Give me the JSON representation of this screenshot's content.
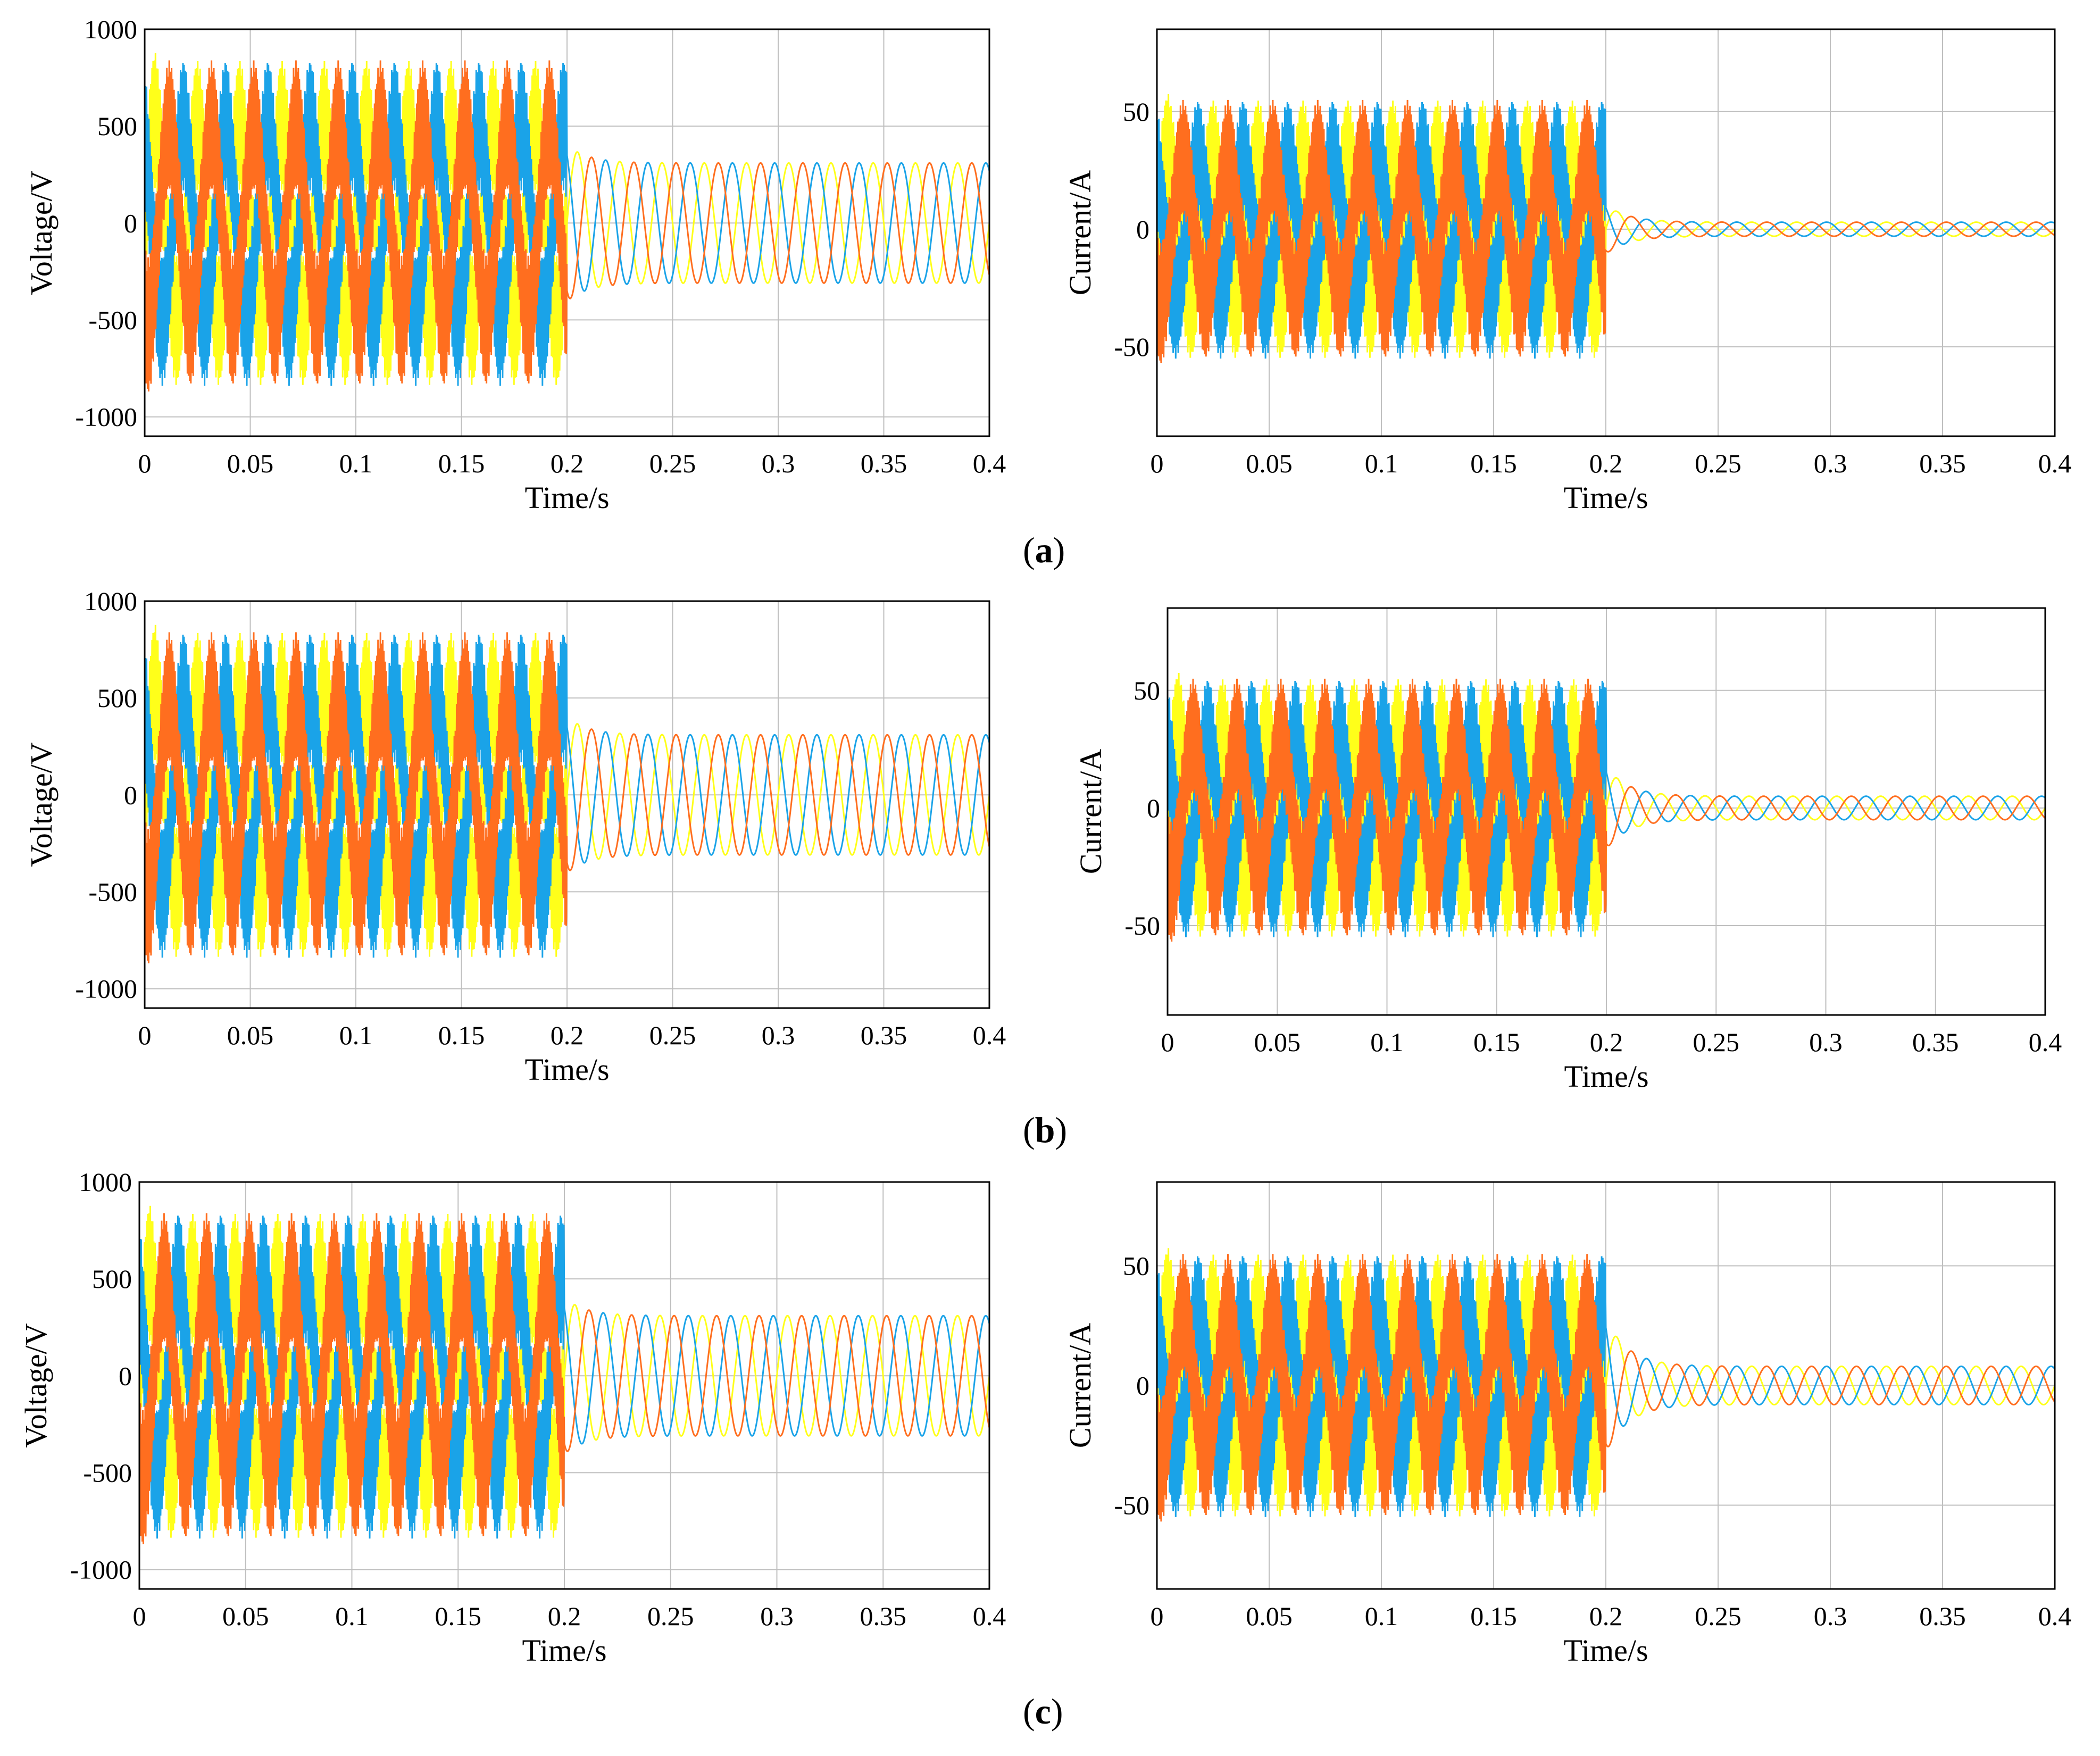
{
  "figure": {
    "panel_labels": [
      {
        "open": "(",
        "letter": "a",
        "close": ")"
      },
      {
        "open": "(",
        "letter": "b",
        "close": ")"
      },
      {
        "open": "(",
        "letter": "c",
        "close": ")"
      }
    ]
  },
  "colors": {
    "phase_a": "#ffff1a",
    "phase_b": "#ff6e1f",
    "phase_c": "#1aa3e8",
    "grid": "#bfbfbf",
    "axis": "#000000"
  },
  "chart_data": [
    {
      "id": "a-voltage",
      "panel": "a",
      "type": "line",
      "xlabel": "Time/s",
      "ylabel": "Voltage/V",
      "xlim": [
        0,
        0.4
      ],
      "ylim": [
        -1100,
        1000
      ],
      "xticks": [
        0,
        0.05,
        0.1,
        0.15,
        0.2,
        0.25,
        0.3,
        0.35,
        0.4
      ],
      "xtick_labels": [
        "0",
        "0.05",
        "0.1",
        "0.15",
        "0.2",
        "0.25",
        "0.3",
        "0.35",
        "0.4"
      ],
      "yticks": [
        -1000,
        -500,
        0,
        500,
        1000
      ],
      "ytick_labels": [
        "-1000",
        "-500",
        "0",
        "500",
        "1000"
      ],
      "grid": true,
      "switch_time": 0.2,
      "frequency_hz": 50,
      "series": [
        {
          "phase": "A",
          "color_key": "phase_a",
          "before_amplitude": 840,
          "after_amplitude": 310,
          "phase_deg": 0
        },
        {
          "phase": "B",
          "color_key": "phase_b",
          "before_amplitude": 840,
          "after_amplitude": 310,
          "phase_deg": -120
        },
        {
          "phase": "C",
          "color_key": "phase_c",
          "before_amplitude": 840,
          "after_amplitude": 310,
          "phase_deg": 120
        }
      ]
    },
    {
      "id": "a-current",
      "panel": "a",
      "type": "line",
      "xlabel": "Time/s",
      "ylabel": "Current/A",
      "xlim": [
        0,
        0.4
      ],
      "ylim": [
        -88,
        85
      ],
      "xticks": [
        0,
        0.05,
        0.1,
        0.15,
        0.2,
        0.25,
        0.3,
        0.35,
        0.4
      ],
      "xtick_labels": [
        "0",
        "0.05",
        "0.1",
        "0.15",
        "0.2",
        "0.25",
        "0.3",
        "0.35",
        "0.4"
      ],
      "yticks": [
        -50,
        0,
        50
      ],
      "ytick_labels": [
        "-50",
        "0",
        "50"
      ],
      "grid": true,
      "switch_time": 0.2,
      "frequency_hz": 50,
      "series": [
        {
          "phase": "A",
          "color_key": "phase_a",
          "before_amplitude": 55,
          "after_amplitude": 3,
          "phase_deg": 0
        },
        {
          "phase": "B",
          "color_key": "phase_b",
          "before_amplitude": 55,
          "after_amplitude": 3,
          "phase_deg": -120
        },
        {
          "phase": "C",
          "color_key": "phase_c",
          "before_amplitude": 55,
          "after_amplitude": 3,
          "phase_deg": 120
        }
      ]
    },
    {
      "id": "b-voltage",
      "panel": "b",
      "type": "line",
      "xlabel": "Time/s",
      "ylabel": "Voltage/V",
      "xlim": [
        0,
        0.4
      ],
      "ylim": [
        -1100,
        1000
      ],
      "xticks": [
        0,
        0.05,
        0.1,
        0.15,
        0.2,
        0.25,
        0.3,
        0.35,
        0.4
      ],
      "xtick_labels": [
        "0",
        "0.05",
        "0.1",
        "0.15",
        "0.2",
        "0.25",
        "0.3",
        "0.35",
        "0.4"
      ],
      "yticks": [
        -1000,
        -500,
        0,
        500,
        1000
      ],
      "ytick_labels": [
        "-1000",
        "-500",
        "0",
        "500",
        "1000"
      ],
      "grid": true,
      "switch_time": 0.2,
      "frequency_hz": 50,
      "series": [
        {
          "phase": "A",
          "color_key": "phase_a",
          "before_amplitude": 840,
          "after_amplitude": 310,
          "phase_deg": 0
        },
        {
          "phase": "B",
          "color_key": "phase_b",
          "before_amplitude": 840,
          "after_amplitude": 310,
          "phase_deg": -120
        },
        {
          "phase": "C",
          "color_key": "phase_c",
          "before_amplitude": 840,
          "after_amplitude": 310,
          "phase_deg": 120
        }
      ]
    },
    {
      "id": "b-current",
      "panel": "b",
      "type": "line",
      "xlabel": "Time/s",
      "ylabel": "Current/A",
      "xlim": [
        0,
        0.4
      ],
      "ylim": [
        -88,
        85
      ],
      "xticks": [
        0,
        0.05,
        0.1,
        0.15,
        0.2,
        0.25,
        0.3,
        0.35,
        0.4
      ],
      "xtick_labels": [
        "0",
        "0.05",
        "0.1",
        "0.15",
        "0.2",
        "0.25",
        "0.3",
        "0.35",
        "0.4"
      ],
      "yticks": [
        -50,
        0,
        50
      ],
      "ytick_labels": [
        "-50",
        "0",
        "50"
      ],
      "grid": true,
      "switch_time": 0.2,
      "frequency_hz": 50,
      "series": [
        {
          "phase": "A",
          "color_key": "phase_a",
          "before_amplitude": 55,
          "after_amplitude": 5,
          "phase_deg": 0
        },
        {
          "phase": "B",
          "color_key": "phase_b",
          "before_amplitude": 55,
          "after_amplitude": 5,
          "phase_deg": -120
        },
        {
          "phase": "C",
          "color_key": "phase_c",
          "before_amplitude": 55,
          "after_amplitude": 5,
          "phase_deg": 120
        }
      ]
    },
    {
      "id": "c-voltage",
      "panel": "c",
      "type": "line",
      "xlabel": "Time/s",
      "ylabel": "Voltage/V",
      "xlim": [
        0,
        0.4
      ],
      "ylim": [
        -1100,
        1000
      ],
      "xticks": [
        0,
        0.05,
        0.1,
        0.15,
        0.2,
        0.25,
        0.3,
        0.35,
        0.4
      ],
      "xtick_labels": [
        "0",
        "0.05",
        "0.1",
        "0.15",
        "0.2",
        "0.25",
        "0.3",
        "0.35",
        "0.4"
      ],
      "yticks": [
        -1000,
        -500,
        0,
        500,
        1000
      ],
      "ytick_labels": [
        "-1000",
        "-500",
        "0",
        "500",
        "1000"
      ],
      "grid": true,
      "switch_time": 0.2,
      "frequency_hz": 50,
      "series": [
        {
          "phase": "A",
          "color_key": "phase_a",
          "before_amplitude": 840,
          "after_amplitude": 310,
          "phase_deg": 0
        },
        {
          "phase": "B",
          "color_key": "phase_b",
          "before_amplitude": 840,
          "after_amplitude": 310,
          "phase_deg": -120
        },
        {
          "phase": "C",
          "color_key": "phase_c",
          "before_amplitude": 840,
          "after_amplitude": 310,
          "phase_deg": 120
        }
      ]
    },
    {
      "id": "c-current",
      "panel": "c",
      "type": "line",
      "xlabel": "Time/s",
      "ylabel": "Current/A",
      "xlim": [
        0,
        0.4
      ],
      "ylim": [
        -85,
        85
      ],
      "xticks": [
        0,
        0.05,
        0.1,
        0.15,
        0.2,
        0.25,
        0.3,
        0.35,
        0.4
      ],
      "xtick_labels": [
        "0",
        "0.05",
        "0.1",
        "0.15",
        "0.2",
        "0.25",
        "0.3",
        "0.35",
        "0.4"
      ],
      "yticks": [
        -50,
        0,
        50
      ],
      "ytick_labels": [
        "-50",
        "0",
        "50"
      ],
      "grid": true,
      "switch_time": 0.2,
      "frequency_hz": 50,
      "series": [
        {
          "phase": "A",
          "color_key": "phase_a",
          "before_amplitude": 55,
          "after_amplitude": 8,
          "phase_deg": 0
        },
        {
          "phase": "B",
          "color_key": "phase_b",
          "before_amplitude": 55,
          "after_amplitude": 8,
          "phase_deg": -120
        },
        {
          "phase": "C",
          "color_key": "phase_c",
          "before_amplitude": 55,
          "after_amplitude": 8,
          "phase_deg": 120
        }
      ]
    }
  ]
}
